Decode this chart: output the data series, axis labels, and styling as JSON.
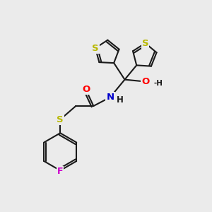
{
  "bg_color": "#ebebeb",
  "bond_color": "#1a1a1a",
  "bond_width": 1.5,
  "atom_colors": {
    "S": "#b8b800",
    "O": "#ff0000",
    "N": "#0000cc",
    "F": "#cc00cc",
    "H": "#1a1a1a",
    "teal": "#008080"
  },
  "font_size": 8.5
}
